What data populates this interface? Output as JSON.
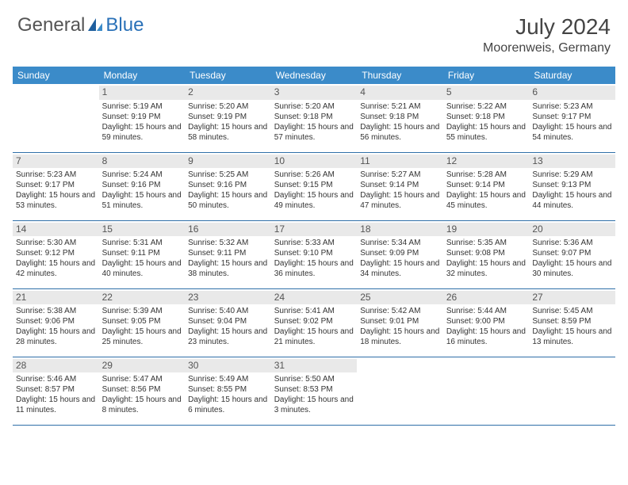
{
  "brand": {
    "part1": "General",
    "part2": "Blue"
  },
  "title": "July 2024",
  "location": "Moorenweis, Germany",
  "colors": {
    "header_bg": "#3b8bc9",
    "row_border": "#2f6fa8",
    "daynum_bg": "#e9e9e9",
    "brand_blue": "#2a71b8",
    "text": "#333333"
  },
  "weekdays": [
    "Sunday",
    "Monday",
    "Tuesday",
    "Wednesday",
    "Thursday",
    "Friday",
    "Saturday"
  ],
  "weeks": [
    [
      {
        "day": "",
        "sunrise": "",
        "sunset": "",
        "daylight": "",
        "blank": true
      },
      {
        "day": "1",
        "sunrise": "Sunrise: 5:19 AM",
        "sunset": "Sunset: 9:19 PM",
        "daylight": "Daylight: 15 hours and 59 minutes."
      },
      {
        "day": "2",
        "sunrise": "Sunrise: 5:20 AM",
        "sunset": "Sunset: 9:19 PM",
        "daylight": "Daylight: 15 hours and 58 minutes."
      },
      {
        "day": "3",
        "sunrise": "Sunrise: 5:20 AM",
        "sunset": "Sunset: 9:18 PM",
        "daylight": "Daylight: 15 hours and 57 minutes."
      },
      {
        "day": "4",
        "sunrise": "Sunrise: 5:21 AM",
        "sunset": "Sunset: 9:18 PM",
        "daylight": "Daylight: 15 hours and 56 minutes."
      },
      {
        "day": "5",
        "sunrise": "Sunrise: 5:22 AM",
        "sunset": "Sunset: 9:18 PM",
        "daylight": "Daylight: 15 hours and 55 minutes."
      },
      {
        "day": "6",
        "sunrise": "Sunrise: 5:23 AM",
        "sunset": "Sunset: 9:17 PM",
        "daylight": "Daylight: 15 hours and 54 minutes."
      }
    ],
    [
      {
        "day": "7",
        "sunrise": "Sunrise: 5:23 AM",
        "sunset": "Sunset: 9:17 PM",
        "daylight": "Daylight: 15 hours and 53 minutes."
      },
      {
        "day": "8",
        "sunrise": "Sunrise: 5:24 AM",
        "sunset": "Sunset: 9:16 PM",
        "daylight": "Daylight: 15 hours and 51 minutes."
      },
      {
        "day": "9",
        "sunrise": "Sunrise: 5:25 AM",
        "sunset": "Sunset: 9:16 PM",
        "daylight": "Daylight: 15 hours and 50 minutes."
      },
      {
        "day": "10",
        "sunrise": "Sunrise: 5:26 AM",
        "sunset": "Sunset: 9:15 PM",
        "daylight": "Daylight: 15 hours and 49 minutes."
      },
      {
        "day": "11",
        "sunrise": "Sunrise: 5:27 AM",
        "sunset": "Sunset: 9:14 PM",
        "daylight": "Daylight: 15 hours and 47 minutes."
      },
      {
        "day": "12",
        "sunrise": "Sunrise: 5:28 AM",
        "sunset": "Sunset: 9:14 PM",
        "daylight": "Daylight: 15 hours and 45 minutes."
      },
      {
        "day": "13",
        "sunrise": "Sunrise: 5:29 AM",
        "sunset": "Sunset: 9:13 PM",
        "daylight": "Daylight: 15 hours and 44 minutes."
      }
    ],
    [
      {
        "day": "14",
        "sunrise": "Sunrise: 5:30 AM",
        "sunset": "Sunset: 9:12 PM",
        "daylight": "Daylight: 15 hours and 42 minutes."
      },
      {
        "day": "15",
        "sunrise": "Sunrise: 5:31 AM",
        "sunset": "Sunset: 9:11 PM",
        "daylight": "Daylight: 15 hours and 40 minutes."
      },
      {
        "day": "16",
        "sunrise": "Sunrise: 5:32 AM",
        "sunset": "Sunset: 9:11 PM",
        "daylight": "Daylight: 15 hours and 38 minutes."
      },
      {
        "day": "17",
        "sunrise": "Sunrise: 5:33 AM",
        "sunset": "Sunset: 9:10 PM",
        "daylight": "Daylight: 15 hours and 36 minutes."
      },
      {
        "day": "18",
        "sunrise": "Sunrise: 5:34 AM",
        "sunset": "Sunset: 9:09 PM",
        "daylight": "Daylight: 15 hours and 34 minutes."
      },
      {
        "day": "19",
        "sunrise": "Sunrise: 5:35 AM",
        "sunset": "Sunset: 9:08 PM",
        "daylight": "Daylight: 15 hours and 32 minutes."
      },
      {
        "day": "20",
        "sunrise": "Sunrise: 5:36 AM",
        "sunset": "Sunset: 9:07 PM",
        "daylight": "Daylight: 15 hours and 30 minutes."
      }
    ],
    [
      {
        "day": "21",
        "sunrise": "Sunrise: 5:38 AM",
        "sunset": "Sunset: 9:06 PM",
        "daylight": "Daylight: 15 hours and 28 minutes."
      },
      {
        "day": "22",
        "sunrise": "Sunrise: 5:39 AM",
        "sunset": "Sunset: 9:05 PM",
        "daylight": "Daylight: 15 hours and 25 minutes."
      },
      {
        "day": "23",
        "sunrise": "Sunrise: 5:40 AM",
        "sunset": "Sunset: 9:04 PM",
        "daylight": "Daylight: 15 hours and 23 minutes."
      },
      {
        "day": "24",
        "sunrise": "Sunrise: 5:41 AM",
        "sunset": "Sunset: 9:02 PM",
        "daylight": "Daylight: 15 hours and 21 minutes."
      },
      {
        "day": "25",
        "sunrise": "Sunrise: 5:42 AM",
        "sunset": "Sunset: 9:01 PM",
        "daylight": "Daylight: 15 hours and 18 minutes."
      },
      {
        "day": "26",
        "sunrise": "Sunrise: 5:44 AM",
        "sunset": "Sunset: 9:00 PM",
        "daylight": "Daylight: 15 hours and 16 minutes."
      },
      {
        "day": "27",
        "sunrise": "Sunrise: 5:45 AM",
        "sunset": "Sunset: 8:59 PM",
        "daylight": "Daylight: 15 hours and 13 minutes."
      }
    ],
    [
      {
        "day": "28",
        "sunrise": "Sunrise: 5:46 AM",
        "sunset": "Sunset: 8:57 PM",
        "daylight": "Daylight: 15 hours and 11 minutes."
      },
      {
        "day": "29",
        "sunrise": "Sunrise: 5:47 AM",
        "sunset": "Sunset: 8:56 PM",
        "daylight": "Daylight: 15 hours and 8 minutes."
      },
      {
        "day": "30",
        "sunrise": "Sunrise: 5:49 AM",
        "sunset": "Sunset: 8:55 PM",
        "daylight": "Daylight: 15 hours and 6 minutes."
      },
      {
        "day": "31",
        "sunrise": "Sunrise: 5:50 AM",
        "sunset": "Sunset: 8:53 PM",
        "daylight": "Daylight: 15 hours and 3 minutes."
      },
      {
        "day": "",
        "sunrise": "",
        "sunset": "",
        "daylight": "",
        "blank": true
      },
      {
        "day": "",
        "sunrise": "",
        "sunset": "",
        "daylight": "",
        "blank": true
      },
      {
        "day": "",
        "sunrise": "",
        "sunset": "",
        "daylight": "",
        "blank": true
      }
    ]
  ]
}
